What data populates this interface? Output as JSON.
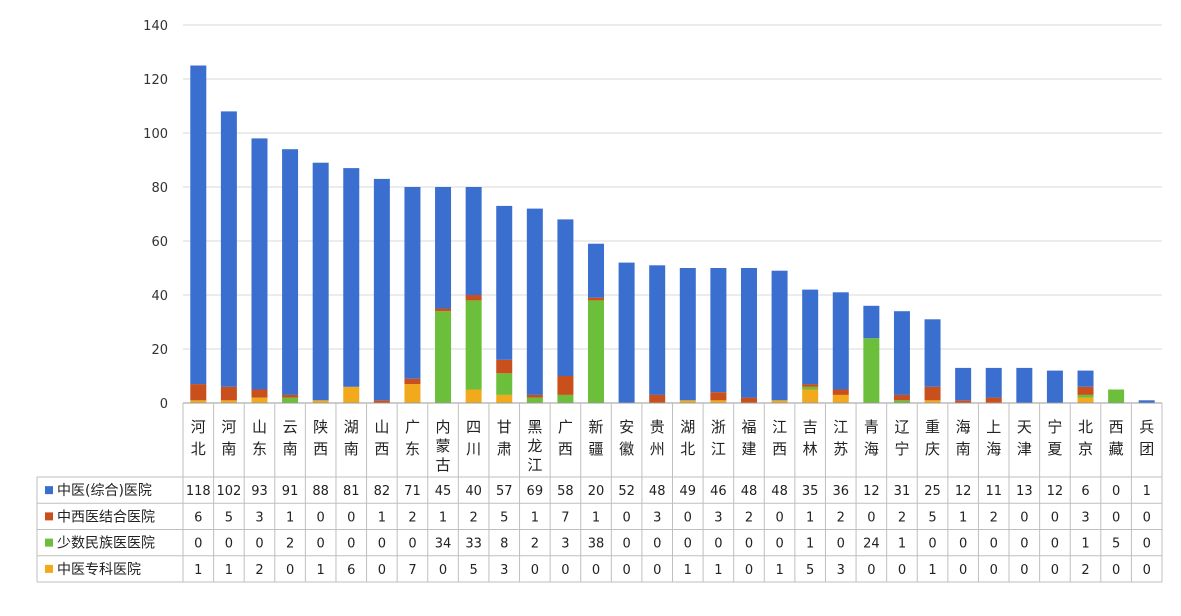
{
  "chart_data": {
    "type": "bar",
    "stacked": true,
    "title": "",
    "xlabel": "",
    "ylabel": "",
    "ylim": [
      0,
      140
    ],
    "yticks": [
      0,
      20,
      40,
      60,
      80,
      100,
      120,
      140
    ],
    "grid": true,
    "legend": "bottom data table",
    "categories": [
      "河北",
      "河南",
      "山东",
      "云南",
      "陕西",
      "湖南",
      "山西",
      "广东",
      "内蒙古",
      "四川",
      "甘肃",
      "黑龙江",
      "广西",
      "新疆",
      "安徽",
      "贵州",
      "湖北",
      "浙江",
      "福建",
      "江西",
      "吉林",
      "江苏",
      "青海",
      "辽宁",
      "重庆",
      "海南",
      "上海",
      "天津",
      "宁夏",
      "北京",
      "西藏",
      "兵团"
    ],
    "series": [
      {
        "name": "中医(综合)医院",
        "color": "#3a6fcf",
        "values": [
          118,
          102,
          93,
          91,
          88,
          81,
          82,
          71,
          45,
          40,
          57,
          69,
          58,
          20,
          52,
          48,
          49,
          46,
          48,
          48,
          35,
          36,
          12,
          31,
          25,
          12,
          11,
          13,
          12,
          6,
          0,
          1
        ]
      },
      {
        "name": "中西医结合医院",
        "color": "#c9501c",
        "values": [
          6,
          5,
          3,
          1,
          0,
          0,
          1,
          2,
          1,
          2,
          5,
          1,
          7,
          1,
          0,
          3,
          0,
          3,
          2,
          0,
          1,
          2,
          0,
          2,
          5,
          1,
          2,
          0,
          0,
          3,
          0,
          0
        ]
      },
      {
        "name": "少数民族医医院",
        "color": "#6bbf3a",
        "values": [
          0,
          0,
          0,
          2,
          0,
          0,
          0,
          0,
          34,
          33,
          8,
          2,
          3,
          38,
          0,
          0,
          0,
          0,
          0,
          0,
          1,
          0,
          24,
          1,
          0,
          0,
          0,
          0,
          0,
          1,
          5,
          0
        ]
      },
      {
        "name": "中医专科医院",
        "color": "#f2a91c",
        "values": [
          1,
          1,
          2,
          0,
          1,
          6,
          0,
          7,
          0,
          5,
          3,
          0,
          0,
          0,
          0,
          0,
          1,
          1,
          0,
          1,
          5,
          3,
          0,
          0,
          1,
          0,
          0,
          0,
          0,
          2,
          0,
          0
        ]
      }
    ]
  }
}
